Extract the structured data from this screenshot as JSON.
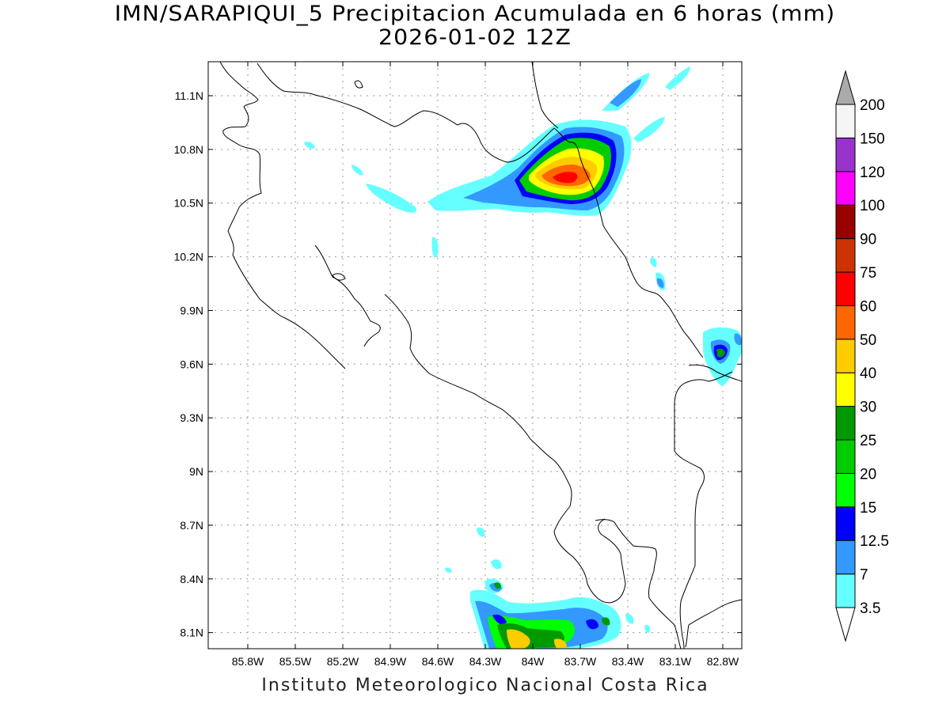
{
  "header": {
    "title_line1": "IMN/SARAPIQUI_5 Precipitacion Acumulada en 6 horas (mm)",
    "title_line2": "2026-01-02 12Z"
  },
  "footer": {
    "credit": "Instituto Meteorologico Nacional Costa Rica"
  },
  "map": {
    "lon_range": [
      -86.05,
      -82.68
    ],
    "lat_range": [
      8.01,
      11.29
    ],
    "lat_ticks": [
      {
        "value": 11.1,
        "label": "11.1N"
      },
      {
        "value": 10.8,
        "label": "10.8N"
      },
      {
        "value": 10.5,
        "label": "10.5N"
      },
      {
        "value": 10.2,
        "label": "10.2N"
      },
      {
        "value": 9.9,
        "label": "9.9N"
      },
      {
        "value": 9.6,
        "label": "9.6N"
      },
      {
        "value": 9.3,
        "label": "9.3N"
      },
      {
        "value": 9.0,
        "label": "9N"
      },
      {
        "value": 8.7,
        "label": "8.7N"
      },
      {
        "value": 8.4,
        "label": "8.4N"
      },
      {
        "value": 8.1,
        "label": "8.1N"
      }
    ],
    "lon_ticks": [
      {
        "value": -85.8,
        "label": "85.8W"
      },
      {
        "value": -85.5,
        "label": "85.5W"
      },
      {
        "value": -85.2,
        "label": "85.2W"
      },
      {
        "value": -84.9,
        "label": "84.9W"
      },
      {
        "value": -84.6,
        "label": "84.6W"
      },
      {
        "value": -84.3,
        "label": "84.3W"
      },
      {
        "value": -84.0,
        "label": "84W"
      },
      {
        "value": -83.7,
        "label": "83.7W"
      },
      {
        "value": -83.4,
        "label": "83.4W"
      },
      {
        "value": -83.1,
        "label": "83.1W"
      },
      {
        "value": -82.8,
        "label": "82.8W"
      }
    ],
    "grid": true,
    "precip_areas": [
      {
        "name": "northern-band",
        "level": 3.5
      },
      {
        "name": "northern-band",
        "level": 7
      },
      {
        "name": "northern-band",
        "level": 12.5
      },
      {
        "name": "northern-band",
        "level": 20
      },
      {
        "name": "northern-band",
        "level": 30
      },
      {
        "name": "northern-band",
        "level": 40
      },
      {
        "name": "northern-band",
        "level": 50
      },
      {
        "name": "northern-band",
        "level": 60
      },
      {
        "name": "southern-cluster",
        "level": 3.5
      },
      {
        "name": "southern-cluster",
        "level": 7
      },
      {
        "name": "southern-cluster",
        "level": 15
      },
      {
        "name": "southern-cluster",
        "level": 25
      },
      {
        "name": "southern-cluster",
        "level": 40
      },
      {
        "name": "eastern-coast-cell",
        "level": 3.5
      },
      {
        "name": "eastern-coast-cell",
        "level": 25
      }
    ]
  },
  "colorbar": {
    "levels": [
      {
        "label": "3.5",
        "color": "#66ffff"
      },
      {
        "label": "7",
        "color": "#3399ff"
      },
      {
        "label": "12.5",
        "color": "#0000ff"
      },
      {
        "label": "15",
        "color": "#00ff00"
      },
      {
        "label": "20",
        "color": "#00cc00"
      },
      {
        "label": "25",
        "color": "#009900"
      },
      {
        "label": "30",
        "color": "#ffff00"
      },
      {
        "label": "40",
        "color": "#ffcc00"
      },
      {
        "label": "50",
        "color": "#ff6600"
      },
      {
        "label": "60",
        "color": "#ff0000"
      },
      {
        "label": "75",
        "color": "#cc3300"
      },
      {
        "label": "90",
        "color": "#990000"
      },
      {
        "label": "100",
        "color": "#ff00ff"
      },
      {
        "label": "120",
        "color": "#9933cc"
      },
      {
        "label": "150",
        "color": "#f5f5f5"
      },
      {
        "label": "200",
        "color": "#aaaaaa"
      }
    ]
  }
}
